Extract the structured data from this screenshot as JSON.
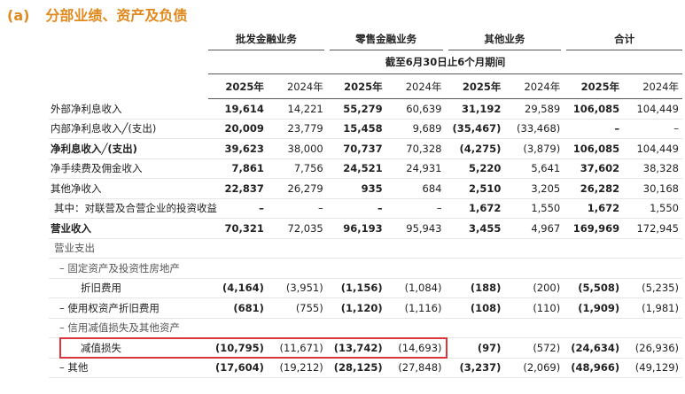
{
  "header": {
    "marker": "(a)",
    "title": "分部业绩、资产及负债"
  },
  "table": {
    "groups": [
      "批发金融业务",
      "零售金融业务",
      "其他业务",
      "合计"
    ],
    "period": "截至6月30日止6个月期间",
    "years": [
      "2025年",
      "2024年",
      "2025年",
      "2024年",
      "2025年",
      "2024年",
      "2025年",
      "2024年"
    ],
    "rows": [
      {
        "label": "外部净利息收入",
        "values": [
          "19,614",
          "14,221",
          "55,279",
          "60,639",
          "31,192",
          "29,589",
          "106,085",
          "104,449"
        ]
      },
      {
        "label": "内部净利息收入╱(支出)",
        "values": [
          "20,009",
          "23,779",
          "15,458",
          "9,689",
          "(35,467)",
          "(33,468)",
          "–",
          "–"
        ]
      },
      {
        "label": "净利息收入╱(支出)",
        "values": [
          "39,623",
          "38,000",
          "70,737",
          "70,328",
          "(4,275)",
          "(3,879)",
          "106,085",
          "104,449"
        ]
      },
      {
        "label": "净手续费及佣金收入",
        "values": [
          "7,861",
          "7,756",
          "24,521",
          "24,931",
          "5,220",
          "5,641",
          "37,602",
          "38,328"
        ]
      },
      {
        "label": "其他净收入",
        "values": [
          "22,837",
          "26,279",
          "935",
          "684",
          "2,510",
          "3,205",
          "26,282",
          "30,168"
        ]
      },
      {
        "label": "其中：对联营及合营企业的投资收益",
        "values": [
          "–",
          "–",
          "–",
          "–",
          "1,672",
          "1,550",
          "1,672",
          "1,550"
        ]
      },
      {
        "label": "营业收入",
        "values": [
          "70,321",
          "72,035",
          "96,193",
          "95,943",
          "3,455",
          "4,967",
          "169,969",
          "172,945"
        ]
      },
      {
        "label": "营业支出"
      },
      {
        "label": "– 固定资产及投资性房地产"
      },
      {
        "label": "折旧费用",
        "values": [
          "(4,164)",
          "(3,951)",
          "(1,156)",
          "(1,084)",
          "(188)",
          "(200)",
          "(5,508)",
          "(5,235)"
        ]
      },
      {
        "label": "– 使用权资产折旧费用",
        "values": [
          "(681)",
          "(755)",
          "(1,120)",
          "(1,116)",
          "(108)",
          "(110)",
          "(1,909)",
          "(1,981)"
        ]
      },
      {
        "label": "– 信用减值损失及其他资产"
      },
      {
        "label": "减值损失",
        "values": [
          "(10,795)",
          "(11,671)",
          "(13,742)",
          "(14,693)",
          "(97)",
          "(572)",
          "(24,634)",
          "(26,936)"
        ]
      },
      {
        "label": "– 其他",
        "values": [
          "(17,604)",
          "(19,212)",
          "(28,125)",
          "(27,848)",
          "(3,237)",
          "(2,069)",
          "(48,966)",
          "(49,129)"
        ]
      }
    ]
  }
}
